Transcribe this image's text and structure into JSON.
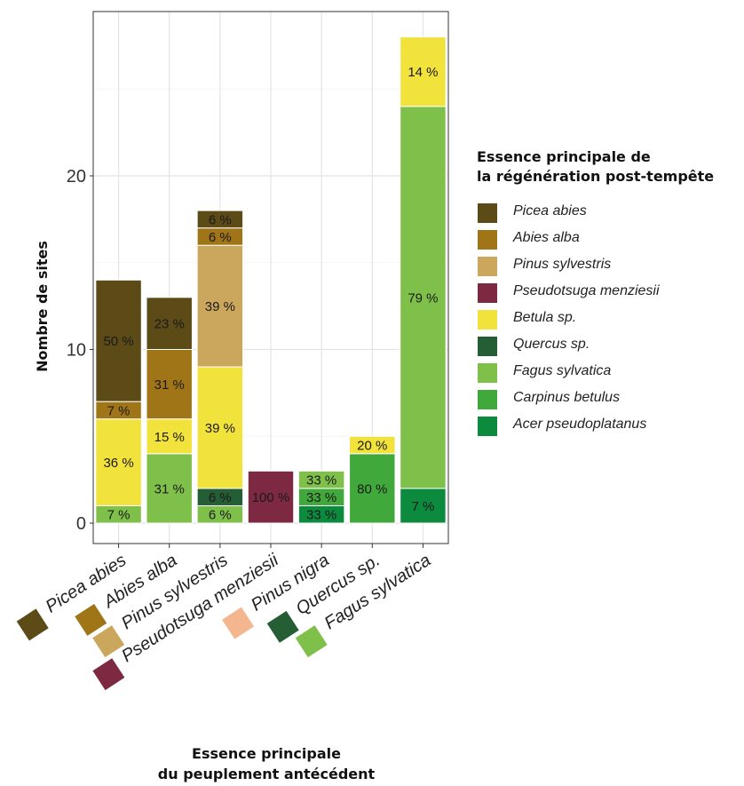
{
  "chart_data": {
    "type": "bar",
    "stacked": true,
    "xlabel": [
      "Essence principale",
      "du peuplement antécédent"
    ],
    "ylabel": "Nombre de sites",
    "ylim": [
      0,
      28.5
    ],
    "yticks": [
      0,
      10,
      20
    ],
    "grid": true,
    "legend_placement": "right",
    "legend_title": [
      "Essence principale de",
      "la régénération post-tempête"
    ],
    "categories": [
      "Picea abies",
      "Abies alba",
      "Pinus sylvestris",
      "Pseudotsuga menziesii",
      "Pinus nigra",
      "Quercus sp.",
      "Fagus sylvatica"
    ],
    "category_colors": [
      "#5c4a17",
      "#a07518",
      "#cba75e",
      "#7d2942",
      "#f4b68f",
      "#255e34",
      "#7ec04a"
    ],
    "series": [
      {
        "name": "Picea abies",
        "color": "#5c4a17",
        "values": [
          7,
          3,
          1,
          0,
          0,
          0,
          0
        ],
        "labels": [
          "50 %",
          "23 %",
          "6 %",
          "",
          "",
          "",
          ""
        ]
      },
      {
        "name": "Abies alba",
        "color": "#a07518",
        "values": [
          1,
          4,
          1,
          0,
          0,
          0,
          0
        ],
        "labels": [
          "7 %",
          "31 %",
          "6 %",
          "",
          "",
          "",
          ""
        ]
      },
      {
        "name": "Pinus sylvestris",
        "color": "#cba75e",
        "values": [
          0,
          0,
          7,
          0,
          0,
          0,
          0
        ],
        "labels": [
          "",
          "",
          "39 %",
          "",
          "",
          "",
          ""
        ]
      },
      {
        "name": "Pseudotsuga menziesii",
        "color": "#7d2942",
        "values": [
          0,
          0,
          0,
          3,
          0,
          0,
          0
        ],
        "labels": [
          "",
          "",
          "",
          "100 %",
          "",
          "",
          ""
        ]
      },
      {
        "name": "Betula sp.",
        "color": "#f2e23c",
        "values": [
          5,
          2,
          7,
          0,
          0,
          1,
          4
        ],
        "labels": [
          "36 %",
          "15 %",
          "39 %",
          "",
          "",
          "20 %",
          "14 %"
        ]
      },
      {
        "name": "Quercus sp.",
        "color": "#255e34",
        "values": [
          0,
          0,
          1,
          0,
          0,
          0,
          0
        ],
        "labels": [
          "",
          "",
          "6 %",
          "",
          "",
          "",
          ""
        ]
      },
      {
        "name": "Fagus sylvatica",
        "color": "#7ec04a",
        "values": [
          1,
          4,
          1,
          0,
          1,
          0,
          22
        ],
        "labels": [
          "7 %",
          "31 %",
          "6 %",
          "",
          "33 %",
          "",
          "79 %"
        ]
      },
      {
        "name": "Carpinus betulus",
        "color": "#41a93b",
        "values": [
          0,
          0,
          0,
          0,
          1,
          4,
          0
        ],
        "labels": [
          "",
          "",
          "",
          "",
          "33 %",
          "80 %",
          ""
        ]
      },
      {
        "name": "Acer pseudoplatanus",
        "color": "#0c8a3d",
        "values": [
          0,
          0,
          0,
          0,
          1,
          0,
          2
        ],
        "labels": [
          "",
          "",
          "",
          "",
          "33 %",
          "",
          "7 %"
        ]
      }
    ]
  }
}
